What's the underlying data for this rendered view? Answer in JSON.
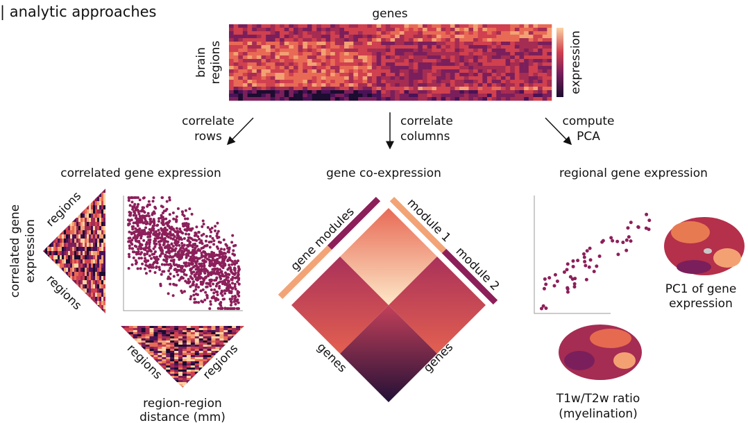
{
  "header": {
    "title": "| analytic approaches"
  },
  "matrix": {
    "x_label": "genes",
    "y_label": [
      "brain",
      "regions"
    ],
    "colorbar_label": "expression"
  },
  "steps": [
    {
      "label": [
        "correlate",
        "rows"
      ]
    },
    {
      "label": [
        "correlate",
        "columns"
      ]
    },
    {
      "label": [
        "compute",
        "PCA"
      ]
    }
  ],
  "panels": [
    {
      "title": "correlated gene expression",
      "y_label": [
        "correlated gene",
        "expression"
      ],
      "matrix_labels": [
        "regions",
        "regions"
      ],
      "distance_labels": [
        "regions",
        "regions"
      ],
      "distance_caption": [
        "region-region",
        "distance (mm)"
      ]
    },
    {
      "title": "gene co-expression",
      "bar_labels": [
        "gene modules",
        "module 1",
        "module 2"
      ],
      "axis_labels": [
        "genes",
        "genes"
      ]
    },
    {
      "title": "regional gene expression",
      "brain_labels": [
        [
          "PC1 of gene",
          "expression"
        ],
        [
          "T1w/T2w ratio",
          "(myelination)"
        ]
      ]
    }
  ]
}
